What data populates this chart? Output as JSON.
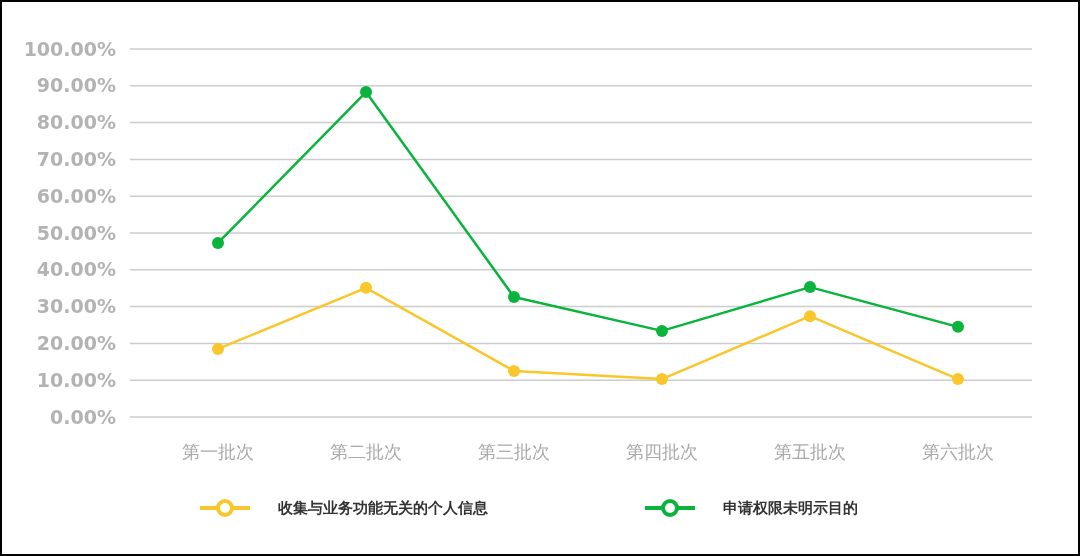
{
  "chart_data": {
    "type": "line",
    "categories": [
      "第一批次",
      "第二批次",
      "第三批次",
      "第四批次",
      "第五批次",
      "第六批次"
    ],
    "series": [
      {
        "name": "收集与业务功能无关的个人信息",
        "color": "#f9c72b",
        "values": [
          18.5,
          35.1,
          12.5,
          10.3,
          27.4,
          10.3
        ]
      },
      {
        "name": "申请权限未明示目的",
        "color": "#0ab43c",
        "values": [
          47.3,
          88.3,
          32.6,
          23.4,
          35.3,
          24.5
        ]
      }
    ],
    "ylim": [
      0,
      100
    ],
    "yticks": [
      {
        "value": 0,
        "label": "0.00%"
      },
      {
        "value": 10,
        "label": "10.00%"
      },
      {
        "value": 20,
        "label": "20.00%"
      },
      {
        "value": 30,
        "label": "30.00%"
      },
      {
        "value": 40,
        "label": "40.00%"
      },
      {
        "value": 50,
        "label": "50.00%"
      },
      {
        "value": 60,
        "label": "60.00%"
      },
      {
        "value": 70,
        "label": "70.00%"
      },
      {
        "value": 80,
        "label": "80.00%"
      },
      {
        "value": 90,
        "label": "90.00%"
      },
      {
        "value": 100,
        "label": "100.00%"
      }
    ],
    "grid": "y",
    "legend": "bottom",
    "marker": "circle",
    "line_style": "solid"
  }
}
